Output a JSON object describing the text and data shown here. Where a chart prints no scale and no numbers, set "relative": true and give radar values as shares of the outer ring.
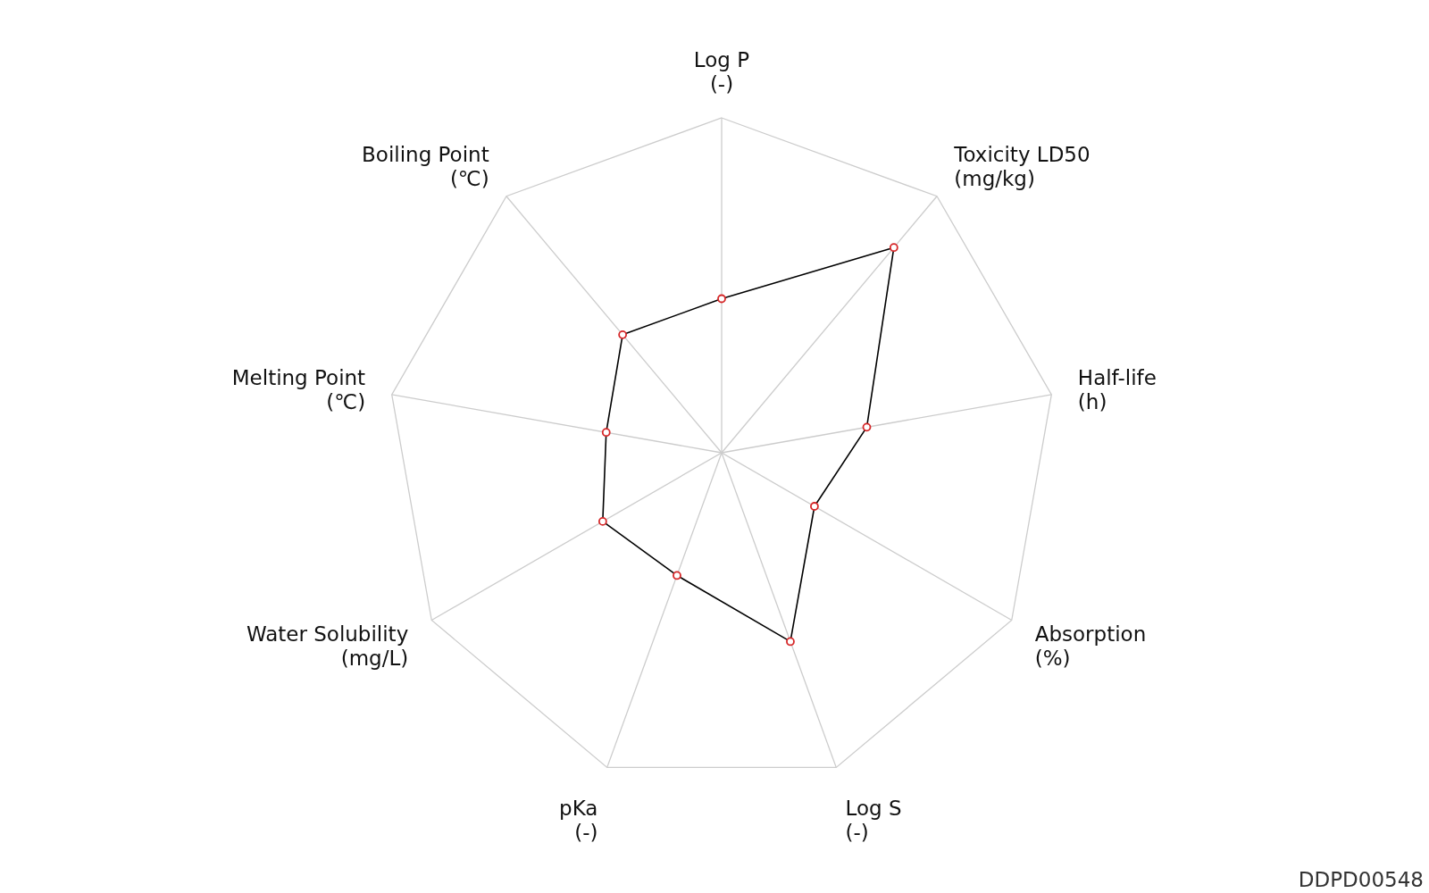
{
  "chart_data": {
    "type": "radar",
    "relative": true,
    "categories": [
      "Log P\n(-)",
      "Toxicity LD50\n(mg/kg)",
      "Half-life\n(h)",
      "Absorption\n(%)",
      "Log S\n(-)",
      "pKa\n(-)",
      "Water Solubility\n(mg/L)",
      "Melting Point\n(℃)",
      "Boiling Point\n(℃)"
    ],
    "series": [
      {
        "color": "#000000",
        "values": [
          0.46,
          0.8,
          0.44,
          0.32,
          0.6,
          0.39,
          0.41,
          0.35,
          0.46
        ]
      }
    ],
    "grid": true,
    "marker": "circle",
    "legend": false,
    "annotations": [
      "DDPD00548"
    ]
  }
}
